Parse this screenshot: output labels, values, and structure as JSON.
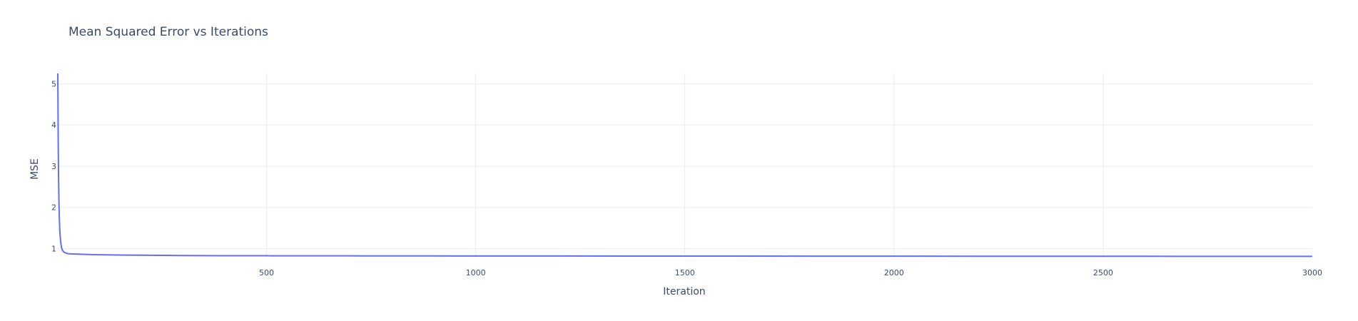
{
  "chart_data": {
    "type": "line",
    "title": "Mean Squared Error vs Iterations",
    "xlabel": "Iteration",
    "ylabel": "MSE",
    "xlim": [
      1,
      3000
    ],
    "ylim": [
      0.8,
      5.25
    ],
    "x_ticks": [
      500,
      1000,
      1500,
      2000,
      2500,
      3000
    ],
    "y_ticks": [
      1,
      2,
      3,
      4,
      5
    ],
    "grid": true,
    "line_color": "#636efa",
    "series": [
      {
        "x": [
          1,
          2,
          3,
          4,
          5,
          6,
          8,
          10,
          12,
          15,
          18,
          22,
          26,
          30,
          35,
          40,
          50,
          60,
          80,
          100,
          130,
          160,
          200,
          250,
          300,
          350,
          400,
          500,
          600,
          700,
          800,
          900,
          1000,
          1200,
          1400,
          1600,
          1800,
          2000,
          2200,
          2400,
          2600,
          2800,
          3000
        ],
        "y": [
          5.25,
          3.6,
          2.6,
          2.0,
          1.65,
          1.4,
          1.15,
          1.02,
          0.96,
          0.92,
          0.9,
          0.885,
          0.875,
          0.872,
          0.87,
          0.868,
          0.864,
          0.86,
          0.855,
          0.85,
          0.846,
          0.842,
          0.838,
          0.834,
          0.83,
          0.828,
          0.827,
          0.825,
          0.824,
          0.823,
          0.822,
          0.821,
          0.82,
          0.819,
          0.818,
          0.817,
          0.816,
          0.815,
          0.814,
          0.813,
          0.812,
          0.811,
          0.81
        ]
      }
    ]
  }
}
